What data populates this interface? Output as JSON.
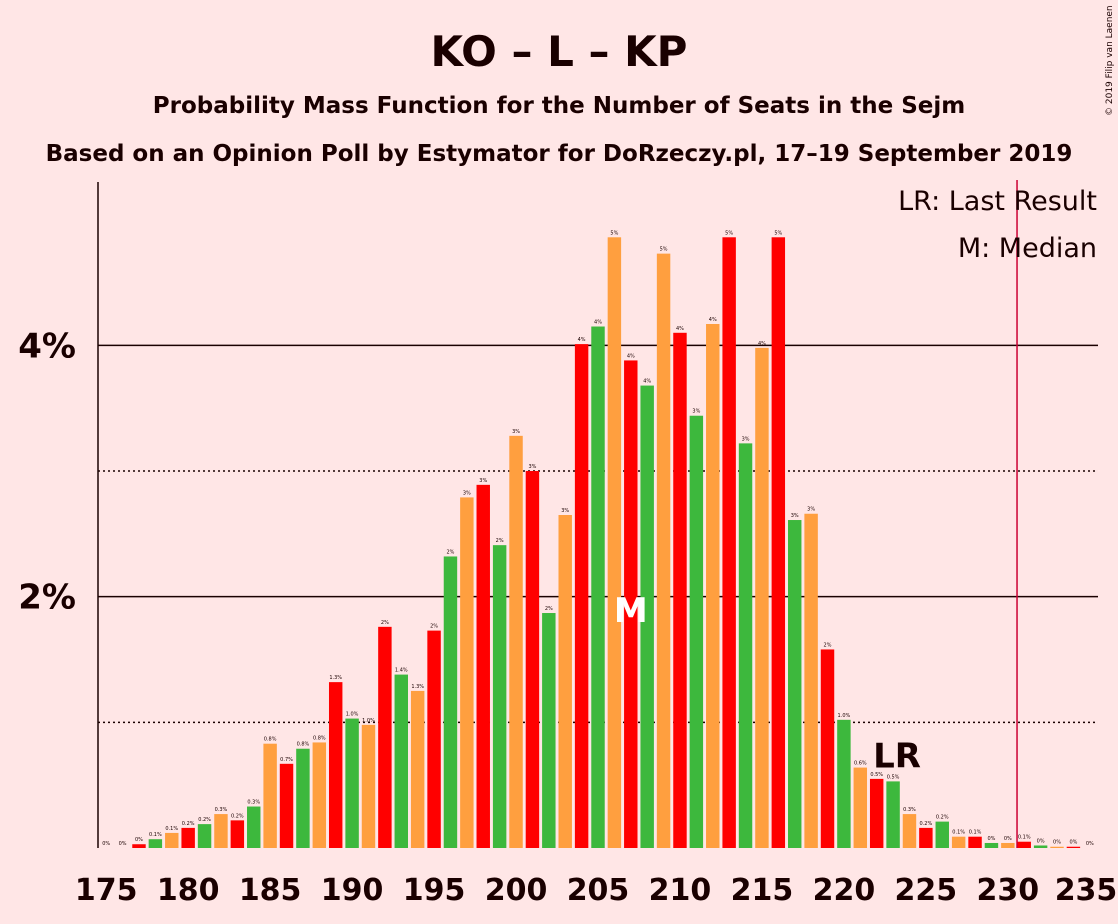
{
  "header": {
    "title": "KO – L – KP",
    "subtitle": "Probability Mass Function for the Number of Seats in the Sejm",
    "source": "Based on an Opinion Poll by Estymator for DoRzeczy.pl, 17–19 September 2019"
  },
  "copyright": "© 2019 Filip van Laenen",
  "legend": {
    "last_result": "LR: Last Result",
    "median": "M: Median"
  },
  "chart_data": {
    "type": "bar",
    "title": "KO – L – KP",
    "x": [
      175,
      176,
      177,
      178,
      179,
      180,
      181,
      182,
      183,
      184,
      185,
      186,
      187,
      188,
      189,
      190,
      191,
      192,
      193,
      194,
      195,
      196,
      197,
      198,
      199,
      200,
      201,
      202,
      203,
      204,
      205,
      206,
      207,
      208,
      209,
      210,
      211,
      212,
      213,
      214,
      215,
      216,
      217,
      218,
      219,
      220,
      221,
      222,
      223,
      224,
      225,
      226,
      227,
      228,
      229,
      230,
      231,
      232,
      233,
      234,
      235
    ],
    "values": [
      0.0,
      0.0,
      0.03,
      0.07,
      0.12,
      0.16,
      0.19,
      0.27,
      0.22,
      0.33,
      0.83,
      0.67,
      0.79,
      0.84,
      1.32,
      1.03,
      0.98,
      1.76,
      1.38,
      1.25,
      1.73,
      2.32,
      2.79,
      2.89,
      2.41,
      3.28,
      3.0,
      1.87,
      2.65,
      4.01,
      4.15,
      4.86,
      3.88,
      3.68,
      4.73,
      4.1,
      3.44,
      4.17,
      4.86,
      3.22,
      3.98,
      4.86,
      2.61,
      2.66,
      1.58,
      1.02,
      0.64,
      0.55,
      0.53,
      0.27,
      0.16,
      0.21,
      0.09,
      0.09,
      0.04,
      0.04,
      0.05,
      0.02,
      0.01,
      0.01,
      0.0
    ],
    "labels": [
      "0%",
      "0%",
      "0%",
      "0.1%",
      "0.1%",
      "0.2%",
      "0.2%",
      "0.3%",
      "0.2%",
      "0.3%",
      "0.8%",
      "0.7%",
      "0.8%",
      "0.8%",
      "1.3%",
      "1.0%",
      "1.0%",
      "2%",
      "1.4%",
      "1.3%",
      "2%",
      "2%",
      "3%",
      "3%",
      "2%",
      "3%",
      "3%",
      "2%",
      "3%",
      "4%",
      "4%",
      "5%",
      "4%",
      "4%",
      "5%",
      "4%",
      "3%",
      "4%",
      "5%",
      "3%",
      "4%",
      "5%",
      "3%",
      "3%",
      "2%",
      "1.0%",
      "0.6%",
      "0.5%",
      "0.5%",
      "0.3%",
      "0.2%",
      "0.2%",
      "0.1%",
      "0.1%",
      "0%",
      "0%",
      "0.1%",
      "0%",
      "0%",
      "0%",
      "0%"
    ],
    "colors": [
      "#3DB83D",
      "#FF9F3F",
      "#FF0000"
    ],
    "yticks": [
      {
        "value": 2,
        "label": "2%"
      },
      {
        "value": 4,
        "label": "4%"
      }
    ],
    "ygrid_dotted": [
      1,
      3
    ],
    "xticks": [
      175,
      180,
      185,
      190,
      195,
      200,
      205,
      210,
      215,
      220,
      225,
      230,
      235
    ],
    "ylim": [
      0,
      5.3
    ],
    "xlim": [
      174.5,
      235.5
    ],
    "median": {
      "x": 207,
      "label": "M"
    },
    "last_result": {
      "x": 223,
      "label": "LR"
    },
    "last_result_line_x": 231
  }
}
